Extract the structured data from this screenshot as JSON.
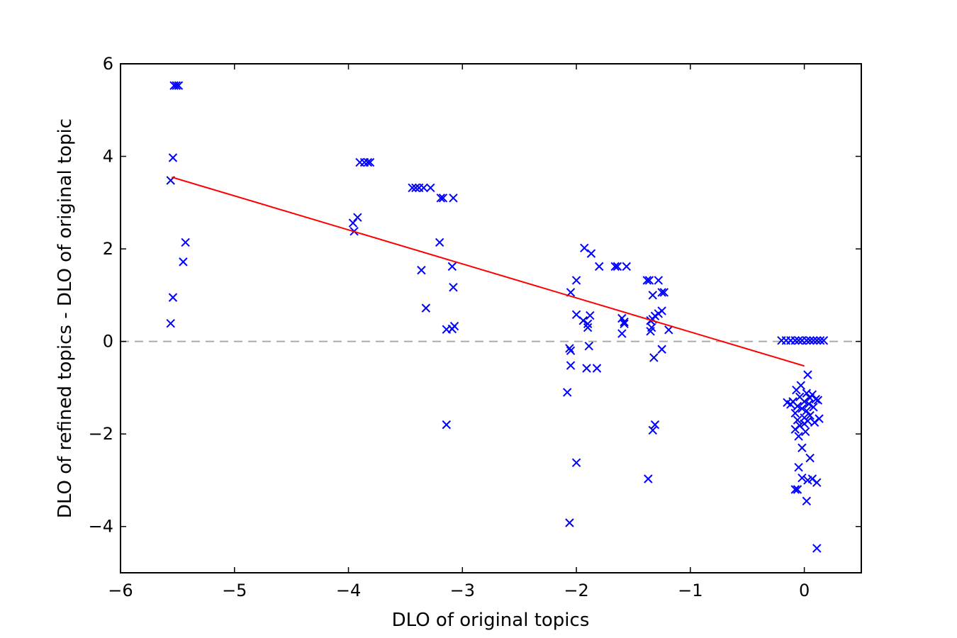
{
  "chart_data": {
    "type": "scatter",
    "xlabel": "DLO of original topics",
    "ylabel": "DLO of refined topics - DLO of original topic",
    "xlim": [
      -6,
      0.5
    ],
    "ylim": [
      -5,
      6
    ],
    "x_ticks": [
      -6,
      -5,
      -4,
      -3,
      -2,
      -1,
      0
    ],
    "y_ticks": [
      -4,
      -2,
      0,
      2,
      4,
      6
    ],
    "x_tick_labels": [
      "−6",
      "−5",
      "−4",
      "−3",
      "−2",
      "−1",
      "0"
    ],
    "y_tick_labels": [
      "−4",
      "−2",
      "0",
      "2",
      "4",
      "6"
    ],
    "grid": false,
    "marker": "x",
    "marker_color": "#0000ff",
    "fit_line": {
      "color": "#ff0000",
      "x": [
        -5.55,
        0.0
      ],
      "y": [
        3.55,
        -0.53
      ]
    },
    "reference_line": {
      "y": 0,
      "style": "dashed",
      "color": "#aaaaaa"
    },
    "points": [
      [
        -5.53,
        5.53
      ],
      [
        -5.51,
        5.53
      ],
      [
        -5.49,
        5.53
      ],
      [
        -5.54,
        3.97
      ],
      [
        -5.56,
        3.48
      ],
      [
        -5.43,
        2.14
      ],
      [
        -5.45,
        1.72
      ],
      [
        -5.54,
        0.95
      ],
      [
        -5.56,
        0.39
      ],
      [
        -3.9,
        3.87
      ],
      [
        -3.86,
        3.87
      ],
      [
        -3.83,
        3.87
      ],
      [
        -3.81,
        3.87
      ],
      [
        -3.96,
        2.56
      ],
      [
        -3.92,
        2.68
      ],
      [
        -3.95,
        2.38
      ],
      [
        -3.44,
        3.32
      ],
      [
        -3.41,
        3.32
      ],
      [
        -3.38,
        3.32
      ],
      [
        -3.34,
        3.32
      ],
      [
        -3.28,
        3.32
      ],
      [
        -3.19,
        3.1
      ],
      [
        -3.17,
        3.1
      ],
      [
        -3.08,
        3.1
      ],
      [
        -3.2,
        2.14
      ],
      [
        -3.36,
        1.54
      ],
      [
        -3.09,
        1.62
      ],
      [
        -3.08,
        1.17
      ],
      [
        -3.32,
        0.72
      ],
      [
        -3.14,
        0.26
      ],
      [
        -3.09,
        0.27
      ],
      [
        -3.07,
        0.33
      ],
      [
        -3.14,
        -1.8
      ],
      [
        -2.05,
        1.06
      ],
      [
        -2.0,
        1.32
      ],
      [
        -1.93,
        2.02
      ],
      [
        -1.87,
        1.9
      ],
      [
        -1.8,
        1.62
      ],
      [
        -1.66,
        1.62
      ],
      [
        -1.64,
        1.62
      ],
      [
        -1.56,
        1.62
      ],
      [
        -2.0,
        0.58
      ],
      [
        -1.94,
        0.45
      ],
      [
        -1.9,
        0.38
      ],
      [
        -1.88,
        0.56
      ],
      [
        -1.9,
        0.3
      ],
      [
        -1.89,
        -0.1
      ],
      [
        -2.06,
        -0.15
      ],
      [
        -2.05,
        -0.2
      ],
      [
        -2.05,
        -0.52
      ],
      [
        -1.91,
        -0.58
      ],
      [
        -1.82,
        -0.58
      ],
      [
        -2.08,
        -1.1
      ],
      [
        -2.0,
        -2.62
      ],
      [
        -2.06,
        -3.92
      ],
      [
        -1.6,
        0.5
      ],
      [
        -1.58,
        0.42
      ],
      [
        -1.58,
        0.38
      ],
      [
        -1.6,
        0.17
      ],
      [
        -1.38,
        1.32
      ],
      [
        -1.36,
        1.32
      ],
      [
        -1.28,
        1.32
      ],
      [
        -1.25,
        1.06
      ],
      [
        -1.23,
        1.06
      ],
      [
        -1.33,
        1.0
      ],
      [
        -1.25,
        0.66
      ],
      [
        -1.28,
        0.6
      ],
      [
        -1.31,
        0.55
      ],
      [
        -1.33,
        0.48
      ],
      [
        -1.35,
        0.45
      ],
      [
        -1.34,
        0.3
      ],
      [
        -1.35,
        0.22
      ],
      [
        -1.19,
        0.25
      ],
      [
        -1.25,
        -0.17
      ],
      [
        -1.32,
        -0.35
      ],
      [
        -1.31,
        -1.8
      ],
      [
        -1.33,
        -1.92
      ],
      [
        -1.37,
        -2.97
      ],
      [
        -0.2,
        0.02
      ],
      [
        -0.16,
        0.02
      ],
      [
        -0.12,
        0.02
      ],
      [
        -0.08,
        0.02
      ],
      [
        -0.05,
        0.02
      ],
      [
        -0.02,
        0.02
      ],
      [
        0.02,
        0.02
      ],
      [
        0.05,
        0.02
      ],
      [
        0.08,
        0.02
      ],
      [
        0.11,
        0.02
      ],
      [
        0.14,
        0.02
      ],
      [
        0.17,
        0.02
      ],
      [
        0.03,
        -0.72
      ],
      [
        -0.03,
        -0.95
      ],
      [
        -0.07,
        -1.05
      ],
      [
        0.02,
        -1.12
      ],
      [
        0.07,
        -1.15
      ],
      [
        -0.04,
        -1.2
      ],
      [
        0.05,
        -1.22
      ],
      [
        0.1,
        -1.25
      ],
      [
        -0.1,
        -1.3
      ],
      [
        0.0,
        -1.3
      ],
      [
        0.12,
        -1.27
      ],
      [
        -0.15,
        -1.32
      ],
      [
        0.04,
        -1.35
      ],
      [
        -0.12,
        -1.36
      ],
      [
        -0.06,
        -1.4
      ],
      [
        0.08,
        -1.42
      ],
      [
        -0.02,
        -1.45
      ],
      [
        0.02,
        -1.5
      ],
      [
        -0.08,
        -1.55
      ],
      [
        0.05,
        -1.6
      ],
      [
        0.0,
        -1.65
      ],
      [
        0.13,
        -1.67
      ],
      [
        -0.06,
        -1.7
      ],
      [
        0.03,
        -1.72
      ],
      [
        0.09,
        -1.75
      ],
      [
        0.0,
        -1.78
      ],
      [
        -0.04,
        -1.82
      ],
      [
        -0.08,
        -1.9
      ],
      [
        0.01,
        -1.95
      ],
      [
        -0.05,
        -2.05
      ],
      [
        -0.02,
        -2.3
      ],
      [
        0.05,
        -2.52
      ],
      [
        -0.05,
        -2.72
      ],
      [
        -0.02,
        -2.95
      ],
      [
        0.03,
        -3.0
      ],
      [
        0.07,
        -2.97
      ],
      [
        0.11,
        -3.05
      ],
      [
        -0.08,
        -3.2
      ],
      [
        -0.06,
        -3.2
      ],
      [
        0.02,
        -3.45
      ],
      [
        0.11,
        -4.47
      ]
    ]
  }
}
